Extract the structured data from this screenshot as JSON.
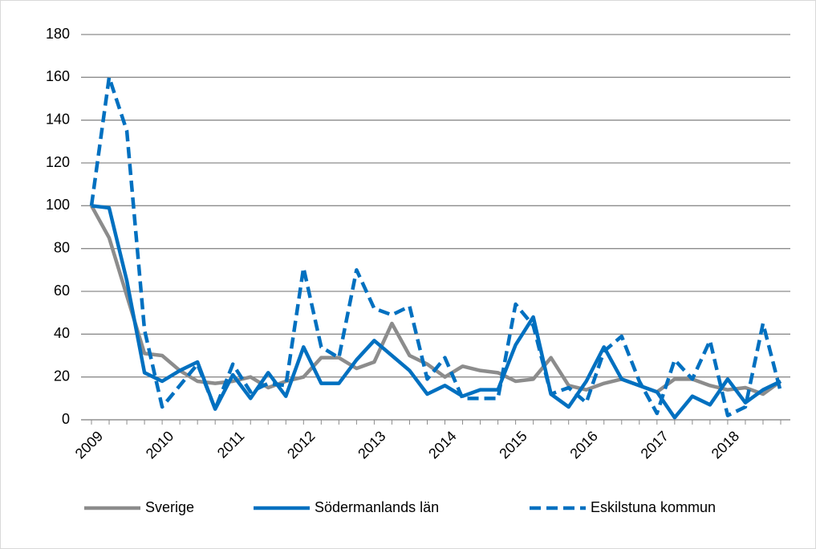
{
  "chart_data": {
    "type": "line",
    "categories": [
      "2009",
      null,
      null,
      null,
      "2010",
      null,
      null,
      null,
      "2011",
      null,
      null,
      null,
      "2012",
      null,
      null,
      null,
      "2013",
      null,
      null,
      null,
      "2014",
      null,
      null,
      null,
      "2015",
      null,
      null,
      null,
      "2016",
      null,
      null,
      null,
      "2017",
      null,
      null,
      null,
      "2018",
      null,
      null,
      null
    ],
    "series": [
      {
        "name": "Sverige",
        "color": "#8c8c8c",
        "style": "solid",
        "values": [
          100,
          85,
          58,
          31,
          30,
          23,
          18,
          17,
          18,
          20,
          15,
          18,
          20,
          29,
          29,
          24,
          27,
          45,
          30,
          26,
          20,
          25,
          23,
          22,
          18,
          19,
          29,
          16,
          14,
          17,
          19,
          16,
          13,
          19,
          19,
          16,
          14,
          15,
          12,
          18
        ]
      },
      {
        "name": "Södermanlands län",
        "color": "#0070c0",
        "style": "solid",
        "values": [
          100,
          99,
          65,
          22,
          18,
          23,
          27,
          5,
          21,
          10,
          22,
          11,
          34,
          17,
          17,
          28,
          37,
          30,
          23,
          12,
          16,
          11,
          14,
          14,
          35,
          48,
          12,
          6,
          18,
          34,
          19,
          16,
          13,
          1,
          11,
          7,
          19,
          8,
          14,
          18
        ]
      },
      {
        "name": "Eskilstuna kommun",
        "color": "#0070c0",
        "style": "dashed",
        "values": [
          100,
          160,
          135,
          42,
          6,
          16,
          26,
          5,
          26,
          13,
          17,
          16,
          71,
          34,
          29,
          70,
          52,
          49,
          53,
          19,
          29,
          10,
          10,
          10,
          54,
          44,
          12,
          15,
          8,
          32,
          39,
          18,
          3,
          28,
          19,
          37,
          2,
          6,
          45,
          13
        ]
      }
    ],
    "ylim": [
      0,
      180
    ],
    "yticks": [
      0,
      20,
      40,
      60,
      80,
      100,
      120,
      140,
      160,
      180
    ],
    "grid": true,
    "legend": "bottom"
  }
}
